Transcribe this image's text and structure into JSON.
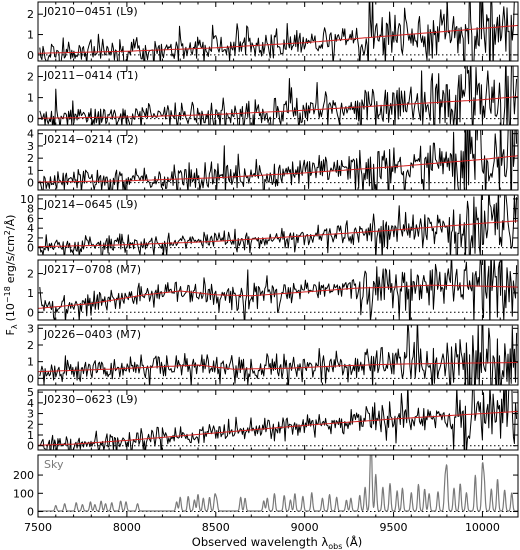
{
  "chart_data": {
    "type": "line",
    "xlabel": "Observed wavelength λ",
    "xlabel_sub": "obs",
    "xlabel_unit": "(Å)",
    "ylabel_main": "F",
    "ylabel_sub": "λ",
    "ylabel_unit": "(10",
    "ylabel_exp": "−18",
    "ylabel_units2": "erg/s/cm",
    "ylabel_sq": "2",
    "ylabel_end": "/Å)",
    "xlim": [
      7500,
      10200
    ],
    "xticks": [
      7500,
      8000,
      8500,
      9000,
      9500,
      10000
    ],
    "xtick_labels": [
      "7500",
      "8000",
      "8500",
      "9000",
      "9500",
      "10000"
    ],
    "panels": [
      {
        "label": "J0210−0451",
        "sptype": "(L9)",
        "ylim": [
          -0.3,
          2.6
        ],
        "yticks": [
          0,
          1,
          2
        ],
        "ytick_labels": [
          "0",
          "1",
          "2"
        ],
        "model": [
          [
            7500,
            0.08
          ],
          [
            8000,
            0.18
          ],
          [
            8500,
            0.35
          ],
          [
            9000,
            0.6
          ],
          [
            9500,
            0.95
          ],
          [
            10000,
            1.3
          ],
          [
            10200,
            1.45
          ]
        ],
        "noise": 0.35
      },
      {
        "label": "J0211−0414",
        "sptype": "(T1)",
        "ylim": [
          -0.3,
          2.5
        ],
        "yticks": [
          0,
          1,
          2
        ],
        "ytick_labels": [
          "0",
          "1",
          "2"
        ],
        "model": [
          [
            7500,
            0.02
          ],
          [
            8000,
            0.08
          ],
          [
            8500,
            0.2
          ],
          [
            9000,
            0.4
          ],
          [
            9500,
            0.65
          ],
          [
            10000,
            0.9
          ],
          [
            10200,
            1.05
          ]
        ],
        "noise": 0.35
      },
      {
        "label": "J0214−0214",
        "sptype": "(T2)",
        "ylim": [
          -0.6,
          4.3
        ],
        "yticks": [
          0,
          1,
          2,
          3,
          4
        ],
        "ytick_labels": [
          "0",
          "1",
          "2",
          "3",
          "4"
        ],
        "model": [
          [
            7500,
            0.05
          ],
          [
            8000,
            0.15
          ],
          [
            8500,
            0.4
          ],
          [
            9000,
            0.8
          ],
          [
            9500,
            1.3
          ],
          [
            10000,
            1.9
          ],
          [
            10200,
            2.2
          ]
        ],
        "noise": 0.6
      },
      {
        "label": "J0214−0645",
        "sptype": "(L9)",
        "ylim": [
          -1.5,
          10.8
        ],
        "yticks": [
          0,
          2,
          4,
          6,
          8,
          10
        ],
        "ytick_labels": [
          "0",
          "2",
          "4",
          "6",
          "8",
          "10"
        ],
        "model": [
          [
            7500,
            0.2
          ],
          [
            8000,
            0.6
          ],
          [
            8500,
            1.3
          ],
          [
            9000,
            2.4
          ],
          [
            9500,
            3.6
          ],
          [
            10000,
            5.0
          ],
          [
            10200,
            5.5
          ]
        ],
        "noise": 1.1
      },
      {
        "label": "J0217−0708",
        "sptype": "(M7)",
        "ylim": [
          -0.4,
          2.7
        ],
        "yticks": [
          0,
          1,
          2
        ],
        "ytick_labels": [
          "0",
          "1",
          "2"
        ],
        "model": [
          [
            7500,
            0.2
          ],
          [
            7800,
            0.45
          ],
          [
            8100,
            0.9
          ],
          [
            8300,
            1.1
          ],
          [
            8500,
            0.9
          ],
          [
            8700,
            0.85
          ],
          [
            9000,
            1.05
          ],
          [
            9300,
            1.25
          ],
          [
            9500,
            1.3
          ],
          [
            9700,
            1.4
          ],
          [
            10000,
            1.35
          ],
          [
            10200,
            1.3
          ]
        ],
        "noise": 0.35
      },
      {
        "label": "J0226−0403",
        "sptype": "(M7)",
        "ylim": [
          -0.4,
          3.2
        ],
        "yticks": [
          0,
          1,
          2,
          3
        ],
        "ytick_labels": [
          "0",
          "1",
          "2",
          "3"
        ],
        "model": [
          [
            7500,
            0.4
          ],
          [
            7900,
            0.55
          ],
          [
            8200,
            0.7
          ],
          [
            8400,
            0.8
          ],
          [
            8600,
            0.55
          ],
          [
            8900,
            0.6
          ],
          [
            9200,
            0.75
          ],
          [
            9500,
            0.85
          ],
          [
            9800,
            0.9
          ],
          [
            10200,
            0.95
          ]
        ],
        "noise": 0.4
      },
      {
        "label": "J0230−0623",
        "sptype": "(L9)",
        "ylim": [
          -0.4,
          5.2
        ],
        "yticks": [
          0,
          1,
          2,
          3,
          4,
          5
        ],
        "ytick_labels": [
          "0",
          "1",
          "2",
          "3",
          "4",
          "5"
        ],
        "model": [
          [
            7500,
            0.05
          ],
          [
            7700,
            0.15
          ],
          [
            8000,
            0.5
          ],
          [
            8500,
            1.2
          ],
          [
            9000,
            1.9
          ],
          [
            9500,
            2.5
          ],
          [
            10000,
            3.0
          ],
          [
            10200,
            3.2
          ]
        ],
        "noise": 0.5
      },
      {
        "label": "Sky",
        "sptype": "",
        "ylim": [
          -30,
          310
        ],
        "yticks": [
          0,
          100,
          200
        ],
        "ytick_labels": [
          "0",
          "100",
          "200"
        ],
        "sky": true,
        "lines": [
          [
            7600,
            30
          ],
          [
            7650,
            40
          ],
          [
            7715,
            45
          ],
          [
            7750,
            35
          ],
          [
            7795,
            50
          ],
          [
            7820,
            35
          ],
          [
            7855,
            55
          ],
          [
            7880,
            40
          ],
          [
            7915,
            45
          ],
          [
            7965,
            55
          ],
          [
            7995,
            50
          ],
          [
            8060,
            40
          ],
          [
            8280,
            50
          ],
          [
            8300,
            75
          ],
          [
            8345,
            80
          ],
          [
            8380,
            60
          ],
          [
            8400,
            90
          ],
          [
            8430,
            70
          ],
          [
            8465,
            75
          ],
          [
            8495,
            85
          ],
          [
            8505,
            60
          ],
          [
            8640,
            75
          ],
          [
            8665,
            70
          ],
          [
            8770,
            55
          ],
          [
            8790,
            70
          ],
          [
            8830,
            95
          ],
          [
            8885,
            85
          ],
          [
            8920,
            60
          ],
          [
            8945,
            95
          ],
          [
            8990,
            80
          ],
          [
            9040,
            100
          ],
          [
            9100,
            70
          ],
          [
            9140,
            90
          ],
          [
            9180,
            75
          ],
          [
            9235,
            60
          ],
          [
            9260,
            70
          ],
          [
            9310,
            85
          ],
          [
            9340,
            130
          ],
          [
            9370,
            175
          ],
          [
            9375,
            270
          ],
          [
            9400,
            200
          ],
          [
            9440,
            130
          ],
          [
            9480,
            150
          ],
          [
            9520,
            110
          ],
          [
            9550,
            125
          ],
          [
            9600,
            100
          ],
          [
            9640,
            145
          ],
          [
            9675,
            120
          ],
          [
            9700,
            95
          ],
          [
            9750,
            105
          ],
          [
            9790,
            170
          ],
          [
            9800,
            225
          ],
          [
            9840,
            125
          ],
          [
            9875,
            150
          ],
          [
            9910,
            100
          ],
          [
            9960,
            195
          ],
          [
            10000,
            240
          ],
          [
            10010,
            160
          ],
          [
            10050,
            120
          ],
          [
            10085,
            175
          ],
          [
            10125,
            115
          ],
          [
            10165,
            100
          ]
        ]
      }
    ]
  }
}
